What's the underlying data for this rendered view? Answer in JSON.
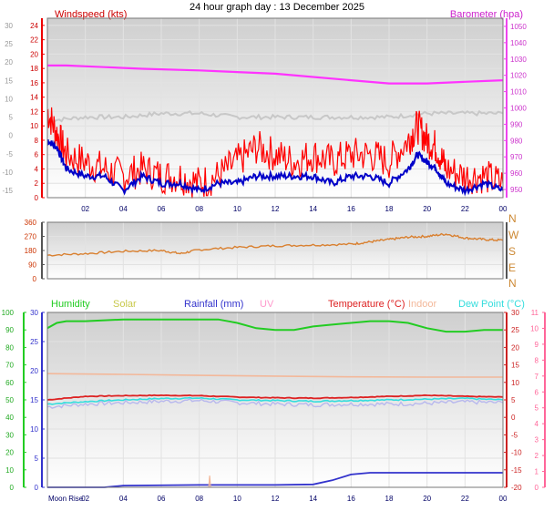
{
  "page_title": "24 hour graph day : 13 December 2025",
  "colors": {
    "wind": "#ff0000",
    "wind_avg": "#0000c8",
    "baro": "#ff33ff",
    "baro_grey": "#c8c8c8",
    "winddir": "#d98030",
    "humidity": "#22cc22",
    "solar": "#c8c84a",
    "rainfall": "#3333cc",
    "uv": "#ff9acd",
    "temperature": "#dd2222",
    "indoor": "#f3b89a",
    "dewpoint": "#33dddd",
    "lavender": "#b8b8ee"
  },
  "chart_data": [
    {
      "type": "line",
      "title": "24 hour graph day : 13 December 2025",
      "x_ticks": [
        "02",
        "04",
        "06",
        "08",
        "10",
        "12",
        "14",
        "16",
        "18",
        "20",
        "22",
        "00"
      ],
      "x_range_hours": [
        0,
        24
      ],
      "grid": true,
      "left_axis": {
        "label": "Windspeed (kts)",
        "ticks": [
          0,
          2,
          4,
          6,
          8,
          10,
          12,
          14,
          16,
          18,
          20,
          22,
          24
        ],
        "range": [
          0,
          25
        ]
      },
      "outer_left_axis": {
        "ticks": [
          -15,
          -10,
          -5,
          0,
          5,
          10,
          15,
          20,
          25,
          30
        ],
        "range": [
          -17,
          32
        ]
      },
      "right_axis": {
        "label": "Barometer (hpa)",
        "ticks": [
          950,
          960,
          970,
          980,
          990,
          1000,
          1010,
          1020,
          1030,
          1040,
          1050
        ],
        "range": [
          945,
          1055
        ]
      },
      "series": [
        {
          "name": "Barometer (hpa)",
          "axis": "right",
          "x": [
            0,
            1,
            3,
            5,
            8,
            10,
            12,
            14,
            16,
            18,
            20,
            22,
            24
          ],
          "y": [
            1026,
            1026,
            1025,
            1024,
            1023,
            1022,
            1021,
            1019,
            1017,
            1015,
            1015,
            1016,
            1017
          ]
        },
        {
          "axis": "outer_left",
          "x": [
            0,
            2,
            4,
            6,
            8,
            10,
            12,
            14,
            16,
            18,
            20,
            22,
            24
          ],
          "y": [
            4,
            5,
            5,
            6,
            6,
            5,
            5,
            5,
            5,
            5,
            6,
            6,
            6
          ]
        },
        {
          "axis": "left",
          "x": [
            0,
            0.5,
            1,
            2,
            3,
            4,
            5,
            6,
            7,
            8,
            9,
            10,
            11,
            12,
            13,
            14,
            15,
            16,
            17,
            18,
            19,
            19.5,
            20,
            20.5,
            21,
            22,
            23,
            24
          ],
          "y": [
            8,
            7,
            4,
            3,
            3,
            1,
            3,
            2,
            2,
            1,
            2,
            2,
            3,
            3,
            3,
            3,
            2,
            3,
            3,
            2,
            4,
            6,
            5,
            4,
            2,
            1,
            2,
            1
          ]
        },
        {
          "axis": "left",
          "x": [
            0,
            0.5,
            1,
            2,
            3,
            4,
            5,
            6,
            7,
            8,
            9,
            10,
            11,
            12,
            13,
            14,
            15,
            16,
            17,
            18,
            19,
            19.5,
            20,
            20.5,
            21,
            22,
            23,
            24
          ],
          "y": [
            12,
            9,
            6,
            5,
            4,
            3,
            4,
            3,
            3,
            2,
            3,
            5,
            7,
            6,
            5,
            6,
            5,
            6,
            6,
            5,
            8,
            10,
            8,
            7,
            4,
            3,
            3,
            2
          ]
        }
      ]
    },
    {
      "type": "line",
      "right_axis": {
        "labels": [
          "N",
          "W",
          "S",
          "E",
          "N"
        ],
        "degrees": [
          360,
          270,
          180,
          90,
          0
        ]
      },
      "left_axis": {
        "ticks": [
          0,
          90,
          180,
          270,
          360
        ],
        "range": [
          0,
          360
        ]
      },
      "x_ticks": [],
      "series": [
        {
          "axis": "left",
          "x": [
            0,
            2,
            4,
            6,
            7,
            8,
            10,
            12,
            14,
            16,
            17,
            18,
            19,
            20,
            21,
            22,
            23,
            24
          ],
          "y": [
            150,
            160,
            175,
            180,
            160,
            185,
            200,
            210,
            215,
            220,
            235,
            250,
            265,
            270,
            285,
            260,
            250,
            245
          ]
        }
      ]
    },
    {
      "type": "line",
      "legend": [
        "Humidity",
        "Solar",
        "Rainfall (mm)",
        "UV",
        "Temperature (°C)",
        "Indoor",
        "Dew Point (°C)"
      ],
      "x_ticks": [
        "Moon Rise",
        "02",
        "04",
        "06",
        "08",
        "10",
        "12",
        "14",
        "16",
        "18",
        "20",
        "22",
        "00"
      ],
      "humidity_axis": {
        "ticks": [
          0,
          10,
          20,
          30,
          40,
          50,
          60,
          70,
          80,
          90,
          100
        ],
        "range": [
          0,
          100
        ]
      },
      "left_axis": {
        "ticks": [
          0,
          5,
          10,
          15,
          20,
          25,
          30
        ],
        "range": [
          0,
          30
        ]
      },
      "right_axis": {
        "ticks": [
          30,
          25,
          20,
          15,
          10,
          5,
          0,
          -5,
          -10,
          -15,
          -20
        ],
        "range": [
          -20,
          30
        ]
      },
      "uv_axis": {
        "ticks": [
          11,
          10,
          9,
          8,
          7,
          6,
          5,
          4,
          3,
          2,
          1,
          0
        ],
        "range": [
          0,
          11
        ]
      },
      "series": [
        {
          "name": "Humidity",
          "axis": "humidity",
          "x": [
            0,
            0.5,
            1,
            2,
            4,
            6,
            8,
            9,
            10,
            11,
            12,
            13,
            14,
            15,
            16,
            17,
            18,
            19,
            20,
            21,
            22,
            23,
            24
          ],
          "y": [
            91,
            94,
            95,
            95,
            96,
            96,
            96,
            96,
            94,
            91,
            90,
            90,
            92,
            93,
            94,
            95,
            95,
            94,
            91,
            89,
            89,
            90,
            90
          ]
        },
        {
          "name": "Solar",
          "axis": "left",
          "x": [
            8.5,
            8.55,
            8.6
          ],
          "y": [
            0,
            2,
            0
          ]
        },
        {
          "name": "Rainfall (mm)",
          "axis": "left",
          "x": [
            0,
            3,
            4,
            8,
            10,
            12,
            14,
            15,
            16,
            17,
            18,
            20,
            22,
            24
          ],
          "y": [
            0,
            0,
            0.3,
            0.4,
            0.4,
            0.4,
            0.5,
            1.2,
            2.2,
            2.5,
            2.5,
            2.5,
            2.5,
            2.5
          ]
        },
        {
          "name": "Temperature (°C)",
          "axis": "right",
          "x": [
            0,
            2,
            4,
            6,
            8,
            10,
            12,
            14,
            16,
            18,
            20,
            22,
            24
          ],
          "y": [
            5.0,
            6.0,
            6.2,
            6.3,
            6.2,
            5.8,
            5.6,
            5.5,
            5.7,
            6.0,
            6.3,
            6.0,
            5.8
          ]
        },
        {
          "name": "Indoor",
          "axis": "right",
          "x": [
            0,
            4,
            8,
            12,
            16,
            20,
            24
          ],
          "y": [
            12.5,
            12.3,
            12.0,
            11.8,
            11.6,
            11.5,
            11.5
          ]
        },
        {
          "name": "Dew Point (°C)",
          "axis": "right",
          "x": [
            0,
            2,
            4,
            6,
            8,
            10,
            12,
            14,
            16,
            18,
            20,
            22,
            24
          ],
          "y": [
            3.8,
            4.5,
            5.0,
            5.4,
            5.5,
            5.0,
            4.8,
            4.6,
            4.8,
            5.0,
            5.2,
            5.4,
            5.0
          ]
        },
        {
          "axis": "right",
          "x": [
            0,
            2,
            4,
            6,
            8,
            10,
            12,
            14,
            16,
            18,
            20,
            22,
            24
          ],
          "y": [
            3.0,
            3.8,
            4.2,
            4.6,
            4.8,
            4.2,
            3.8,
            3.6,
            3.8,
            3.8,
            4.0,
            4.4,
            4.2
          ]
        }
      ]
    }
  ]
}
